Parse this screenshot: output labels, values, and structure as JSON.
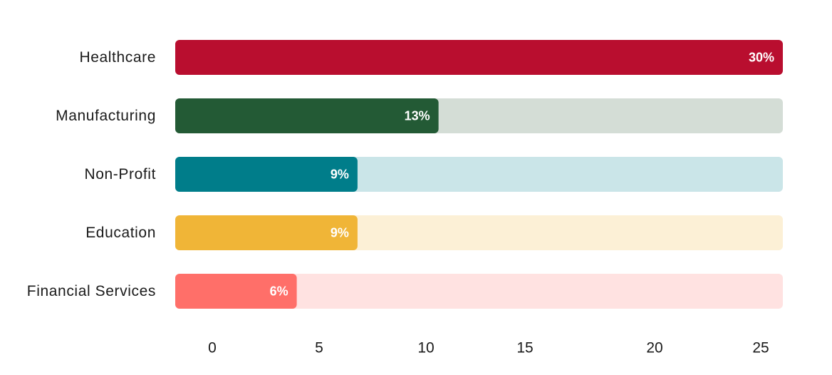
{
  "chart_data": {
    "type": "bar",
    "orientation": "horizontal",
    "title": "",
    "xlabel": "",
    "ylabel": "",
    "categories": [
      "Healthcare",
      "Manufacturing",
      "Non-Profit",
      "Education",
      "Financial Services"
    ],
    "values": [
      30,
      13,
      9,
      9,
      6
    ],
    "value_labels": [
      "30%",
      "13%",
      "9%",
      "9%",
      "6%"
    ],
    "bar_colors": [
      "#B90E2F",
      "#235A35",
      "#007D8A",
      "#F0B537",
      "#FF6F69"
    ],
    "track_colors": [
      "#F6D5DB",
      "#D4DDD6",
      "#CAE5E8",
      "#FCF0D6",
      "#FFE2E1"
    ],
    "x_ticks": [
      {
        "value": 0,
        "label": "0"
      },
      {
        "value": 5,
        "label": "5"
      },
      {
        "value": 10,
        "label": "10"
      },
      {
        "value": 15,
        "label": "15"
      },
      {
        "value": 20,
        "label": "20"
      },
      {
        "value": 25,
        "label": "25"
      }
    ],
    "grid": false,
    "legend": "none"
  }
}
